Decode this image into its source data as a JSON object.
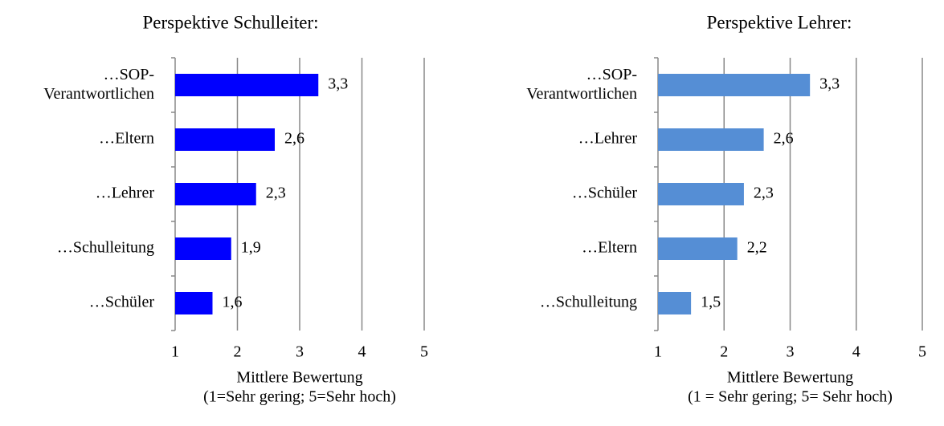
{
  "chart_data": [
    {
      "type": "barh",
      "title": "Perspektive Schulleiter:",
      "categories": [
        "…SOP-\nVerantwortlichen",
        "…Eltern",
        "…Lehrer",
        "…Schulleitung",
        "…Schüler"
      ],
      "values": [
        3.3,
        2.6,
        2.3,
        1.9,
        1.6
      ],
      "value_labels": [
        "3,3",
        "2,6",
        "2,3",
        "1,9",
        "1,6"
      ],
      "color": "#0000ff",
      "xlim": [
        1,
        5
      ],
      "xticks": [
        1,
        2,
        3,
        4,
        5
      ],
      "grid": true,
      "xlabel": [
        "Mittlere Bewertung",
        "(1=Sehr gering; 5=Sehr hoch)"
      ]
    },
    {
      "type": "barh",
      "title": "Perspektive Lehrer:",
      "categories": [
        "…SOP-\nVerantwortlichen",
        "…Lehrer",
        "…Schüler",
        "…Eltern",
        "…Schulleitung"
      ],
      "values": [
        3.3,
        2.6,
        2.3,
        2.2,
        1.5
      ],
      "value_labels": [
        "3,3",
        "2,6",
        "2,3",
        "2,2",
        "1,5"
      ],
      "color": "#558ed5",
      "xlim": [
        1,
        5
      ],
      "xticks": [
        1,
        2,
        3,
        4,
        5
      ],
      "grid": true,
      "xlabel": [
        "Mittlere Bewertung",
        "(1 = Sehr gering; 5= Sehr hoch)"
      ]
    }
  ]
}
